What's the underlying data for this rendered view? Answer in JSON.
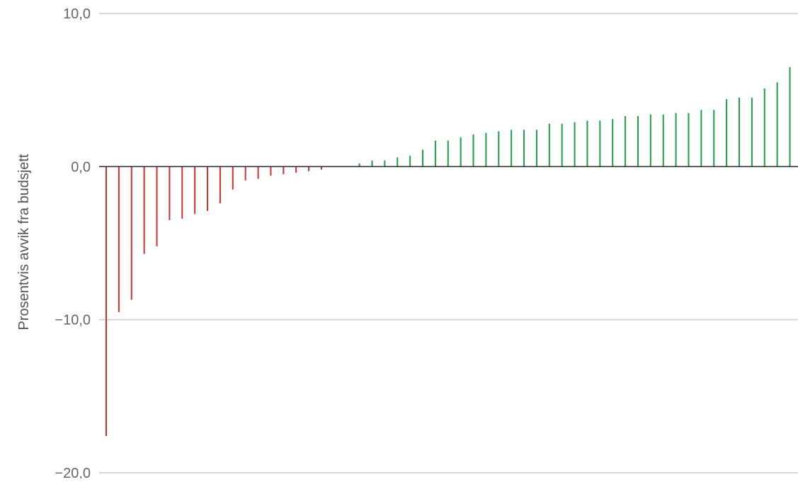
{
  "chart_data": {
    "type": "bar",
    "orientation": "vertical",
    "ylabel": "Prosentvis avvik fra budsjett",
    "xlabel": "",
    "ylim": [
      -20,
      10
    ],
    "yticks": [
      {
        "value": 10,
        "label": "10,0"
      },
      {
        "value": 0,
        "label": "0,0"
      },
      {
        "value": -10,
        "label": "−10,0"
      },
      {
        "value": -20,
        "label": "−20,0"
      }
    ],
    "grid": true,
    "legend": "none",
    "colors": {
      "negative": "#d32f2f",
      "positive": "#1e9e48",
      "zero_line": "#222222",
      "gridline": "#cccccc"
    },
    "values": [
      -17.6,
      -9.5,
      -8.7,
      -5.7,
      -5.2,
      -3.5,
      -3.4,
      -3.1,
      -2.9,
      -2.4,
      -1.5,
      -0.9,
      -0.8,
      -0.6,
      -0.5,
      -0.4,
      -0.3,
      -0.2,
      0,
      0,
      0.2,
      0.4,
      0.4,
      0.6,
      0.7,
      1.1,
      1.7,
      1.7,
      1.9,
      2.1,
      2.2,
      2.3,
      2.4,
      2.4,
      2.4,
      2.8,
      2.8,
      2.9,
      3.0,
      3.0,
      3.1,
      3.3,
      3.3,
      3.4,
      3.4,
      3.5,
      3.5,
      3.7,
      3.7,
      4.4,
      4.5,
      4.5,
      5.1,
      5.5,
      6.5
    ]
  }
}
